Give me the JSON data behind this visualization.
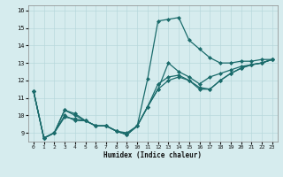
{
  "title": "",
  "xlabel": "Humidex (Indice chaleur)",
  "ylabel": "",
  "bg_color": "#d6ecee",
  "grid_color": "#b8d8dc",
  "line_color": "#1a6b6b",
  "marker": "D",
  "markersize": 2.0,
  "linewidth": 0.9,
  "xlim": [
    -0.5,
    23.5
  ],
  "ylim": [
    8.5,
    16.3
  ],
  "xticks": [
    0,
    1,
    2,
    3,
    4,
    5,
    6,
    7,
    8,
    9,
    10,
    11,
    12,
    13,
    14,
    15,
    16,
    17,
    18,
    19,
    20,
    21,
    22,
    23
  ],
  "yticks": [
    9,
    10,
    11,
    12,
    13,
    14,
    15,
    16
  ],
  "lines": [
    [
      [
        0,
        11.4
      ],
      [
        1,
        8.7
      ],
      [
        2,
        9.0
      ],
      [
        3,
        10.3
      ],
      [
        4,
        10.1
      ],
      [
        5,
        9.7
      ],
      [
        6,
        9.4
      ],
      [
        7,
        9.4
      ],
      [
        8,
        9.1
      ],
      [
        9,
        8.9
      ],
      [
        10,
        9.4
      ],
      [
        11,
        12.1
      ],
      [
        12,
        15.4
      ],
      [
        13,
        15.5
      ],
      [
        14,
        15.6
      ],
      [
        15,
        14.3
      ],
      [
        16,
        13.8
      ],
      [
        17,
        13.3
      ],
      [
        18,
        13.0
      ],
      [
        19,
        13.0
      ],
      [
        20,
        13.1
      ],
      [
        21,
        13.1
      ],
      [
        22,
        13.2
      ],
      [
        23,
        13.2
      ]
    ],
    [
      [
        0,
        11.4
      ],
      [
        1,
        8.7
      ],
      [
        2,
        9.0
      ],
      [
        3,
        10.0
      ],
      [
        4,
        9.7
      ],
      [
        5,
        9.7
      ],
      [
        6,
        9.4
      ],
      [
        7,
        9.4
      ],
      [
        8,
        9.1
      ],
      [
        9,
        8.9
      ],
      [
        10,
        9.4
      ],
      [
        11,
        10.5
      ],
      [
        12,
        11.5
      ],
      [
        13,
        13.0
      ],
      [
        14,
        12.5
      ],
      [
        15,
        12.2
      ],
      [
        16,
        11.8
      ],
      [
        17,
        12.2
      ],
      [
        18,
        12.4
      ],
      [
        19,
        12.6
      ],
      [
        20,
        12.8
      ],
      [
        21,
        12.9
      ],
      [
        22,
        13.0
      ],
      [
        23,
        13.2
      ]
    ],
    [
      [
        0,
        11.4
      ],
      [
        1,
        8.7
      ],
      [
        2,
        9.0
      ],
      [
        3,
        10.3
      ],
      [
        4,
        10.0
      ],
      [
        5,
        9.7
      ],
      [
        6,
        9.4
      ],
      [
        7,
        9.4
      ],
      [
        8,
        9.1
      ],
      [
        9,
        9.0
      ],
      [
        10,
        9.4
      ],
      [
        11,
        10.5
      ],
      [
        12,
        11.8
      ],
      [
        13,
        12.2
      ],
      [
        14,
        12.3
      ],
      [
        15,
        12.0
      ],
      [
        16,
        11.6
      ],
      [
        17,
        11.5
      ],
      [
        18,
        12.0
      ],
      [
        19,
        12.4
      ],
      [
        20,
        12.7
      ],
      [
        21,
        12.9
      ],
      [
        22,
        13.0
      ],
      [
        23,
        13.2
      ]
    ],
    [
      [
        0,
        11.4
      ],
      [
        1,
        8.7
      ],
      [
        2,
        9.0
      ],
      [
        3,
        9.9
      ],
      [
        4,
        9.8
      ],
      [
        5,
        9.7
      ],
      [
        6,
        9.4
      ],
      [
        7,
        9.4
      ],
      [
        8,
        9.1
      ],
      [
        9,
        8.9
      ],
      [
        10,
        9.4
      ],
      [
        11,
        10.5
      ],
      [
        12,
        11.5
      ],
      [
        13,
        12.0
      ],
      [
        14,
        12.2
      ],
      [
        15,
        12.0
      ],
      [
        16,
        11.5
      ],
      [
        17,
        11.5
      ],
      [
        18,
        12.0
      ],
      [
        19,
        12.4
      ],
      [
        20,
        12.7
      ],
      [
        21,
        12.9
      ],
      [
        22,
        13.0
      ],
      [
        23,
        13.2
      ]
    ]
  ]
}
